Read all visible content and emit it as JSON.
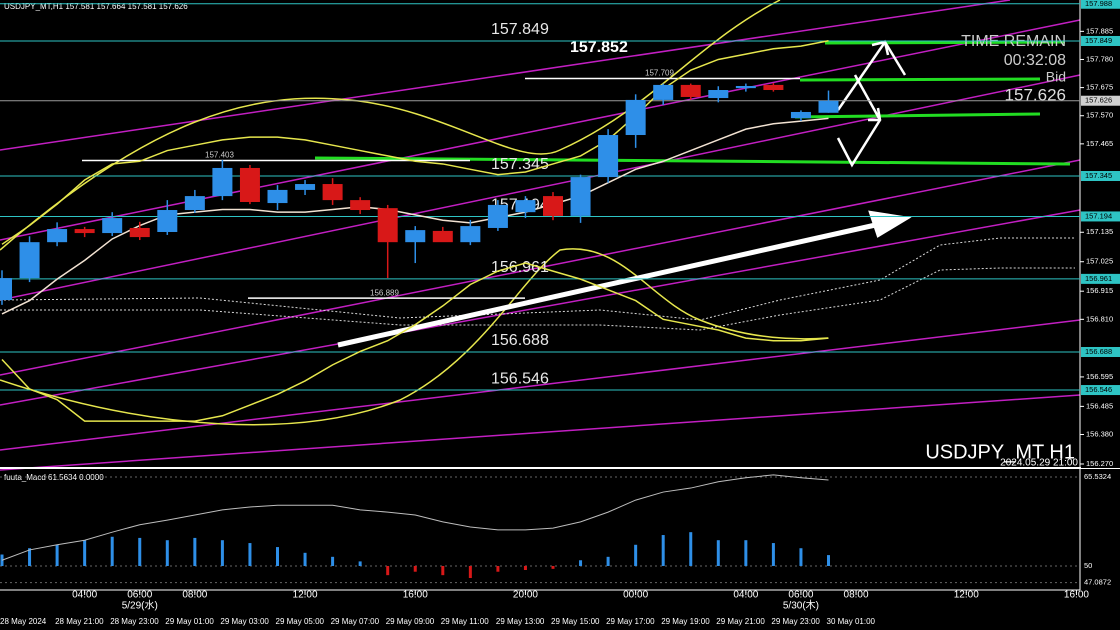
{
  "header": "USDJPY_MT,H1  157.581 157.664 157.581 157.626",
  "chart_data": [
    {
      "type": "candlestick",
      "title": "USDJPY_MT H1",
      "subtitle": "2024.05.29 21:00",
      "categories": [
        null,
        null,
        null,
        "04:00",
        null,
        "06:00",
        null,
        "08:00",
        null,
        null,
        null,
        "12:00",
        null,
        null,
        null,
        "16:00",
        null,
        null,
        null,
        "20:00",
        null,
        null,
        null,
        "00:00",
        null,
        null,
        null,
        "04:00",
        null,
        "06:00",
        null,
        "08:00",
        null,
        null,
        null,
        "12:00",
        null,
        null,
        null,
        "16:00"
      ],
      "category_dates": [
        null,
        null,
        null,
        null,
        null,
        "5/29(水)",
        null,
        null,
        null,
        null,
        null,
        null,
        null,
        null,
        null,
        null,
        null,
        null,
        null,
        null,
        null,
        null,
        null,
        null,
        null,
        null,
        null,
        null,
        null,
        "5/30(木)",
        null,
        null,
        null,
        null,
        null,
        null,
        null,
        null,
        null,
        null
      ],
      "bottom_labels": [
        "28 May 2024",
        null,
        "28 May 21:00",
        null,
        "28 May 23:00",
        null,
        "29 May 01:00",
        null,
        "29 May 03:00",
        null,
        "29 May 05:00",
        null,
        "29 May 07:00",
        null,
        "29 May 09:00",
        null,
        "29 May 11:00",
        null,
        "29 May 13:00",
        null,
        "29 May 15:00",
        null,
        "29 May 17:00",
        null,
        "29 May 19:00",
        null,
        "29 May 21:00",
        null,
        "29 May 23:00",
        null,
        "30 May 01:00",
        null,
        null,
        null,
        null,
        null,
        null,
        null,
        null,
        null
      ],
      "open": [
        156.882,
        156.964,
        157.098,
        157.147,
        157.132,
        157.151,
        157.136,
        157.218,
        157.27,
        157.375,
        157.244,
        157.293,
        157.315,
        157.255,
        157.225,
        157.098,
        157.14,
        157.098,
        157.151,
        157.21,
        157.27,
        157.196,
        157.341,
        157.498,
        157.629,
        157.685,
        157.636,
        157.673,
        157.685,
        157.561,
        157.581,
        null,
        null,
        null,
        null,
        null,
        null,
        null,
        null,
        null
      ],
      "high": [
        156.993,
        157.12,
        157.172,
        157.155,
        157.21,
        157.174,
        157.255,
        157.293,
        157.405,
        157.386,
        157.311,
        157.33,
        157.337,
        157.266,
        157.237,
        157.158,
        157.155,
        157.181,
        157.255,
        157.27,
        157.285,
        157.35,
        157.52,
        157.65,
        157.69,
        157.69,
        157.68,
        157.69,
        157.692,
        157.59,
        157.664,
        null,
        null,
        null,
        null,
        null,
        null,
        null,
        null,
        null
      ],
      "low": [
        156.864,
        156.949,
        157.083,
        157.117,
        157.121,
        157.106,
        157.125,
        157.207,
        157.255,
        157.24,
        157.218,
        157.274,
        157.237,
        157.203,
        156.964,
        157.02,
        157.106,
        157.087,
        157.14,
        157.188,
        157.18,
        157.17,
        157.32,
        157.45,
        157.61,
        157.63,
        157.62,
        157.66,
        157.66,
        157.55,
        157.581,
        null,
        null,
        null,
        null,
        null,
        null,
        null,
        null,
        null
      ],
      "close": [
        156.964,
        157.098,
        157.147,
        157.132,
        157.188,
        157.117,
        157.218,
        157.27,
        157.375,
        157.248,
        157.293,
        157.315,
        157.255,
        157.218,
        157.098,
        157.143,
        157.098,
        157.158,
        157.237,
        157.255,
        157.196,
        157.341,
        157.498,
        157.629,
        157.685,
        157.64,
        157.666,
        157.681,
        157.666,
        157.584,
        157.626,
        null,
        null,
        null,
        null,
        null,
        null,
        null,
        null,
        null
      ],
      "up_color": "#2e8fe8",
      "down_color": "#d81818",
      "overlays": [
        {
          "color": "#e6e64d",
          "values": [
            157.09,
            157.16,
            157.24,
            157.33,
            157.39,
            157.4,
            157.44,
            157.46,
            157.48,
            157.49,
            157.49,
            157.48,
            157.46,
            157.44,
            157.42,
            157.4,
            157.39,
            157.37,
            157.35,
            157.36,
            157.39,
            157.42,
            157.48,
            157.57,
            157.67,
            157.74,
            157.78,
            157.8,
            157.82,
            157.83,
            157.85,
            null,
            null,
            null,
            null,
            null,
            null,
            null,
            null,
            null
          ]
        },
        {
          "color": "#e6e64d",
          "values": [
            156.66,
            156.55,
            156.51,
            156.43,
            156.43,
            156.43,
            156.43,
            156.43,
            156.45,
            156.49,
            156.53,
            156.58,
            156.64,
            156.69,
            156.73,
            156.79,
            156.86,
            156.94,
            156.99,
            157.02,
            156.99,
            156.96,
            156.92,
            156.88,
            156.81,
            156.79,
            156.77,
            156.74,
            156.73,
            156.73,
            156.74,
            null,
            null,
            null,
            null,
            null,
            null,
            null,
            null,
            null
          ]
        },
        {
          "color": "#f2e2d2",
          "values": [
            156.83,
            156.88,
            156.96,
            157.03,
            157.11,
            157.16,
            157.2,
            157.21,
            157.22,
            157.22,
            157.21,
            157.21,
            157.22,
            157.23,
            157.22,
            157.2,
            157.18,
            157.17,
            157.19,
            157.21,
            157.24,
            157.27,
            157.32,
            157.37,
            157.4,
            157.44,
            157.48,
            157.52,
            157.54,
            157.55,
            157.56,
            null,
            null,
            null,
            null,
            null,
            null,
            null,
            null,
            null
          ]
        }
      ],
      "ylim": [
        156.255,
        158.002
      ],
      "yticks": [
        157.885,
        {
          "value": 157.78,
          "label": "157.780"
        },
        157.675,
        {
          "value": 157.57,
          "label": "157.570"
        },
        157.465,
        157.135,
        157.025,
        156.915,
        {
          "value": 156.81,
          "label": "156.810"
        },
        156.595,
        156.485,
        {
          "value": 156.38,
          "label": "156.380"
        },
        {
          "value": 156.27,
          "label": "156.270"
        }
      ],
      "levels": [
        {
          "value": 157.988,
          "color": "#2ec4c4"
        },
        {
          "value": 157.849,
          "color": "#2ec4c4"
        },
        {
          "value": 157.626,
          "color": "#9a9a9a"
        },
        {
          "value": 157.345,
          "color": "#2ec4c4"
        },
        {
          "value": 157.194,
          "color": "#2ec4c4"
        },
        {
          "value": 156.961,
          "color": "#2ec4c4"
        },
        {
          "value": 156.688,
          "color": "#2ec4c4"
        },
        {
          "value": 156.546,
          "color": "#2ec4c4"
        }
      ],
      "segments": [
        157.709,
        157.403,
        156.889
      ],
      "high_label": 157.852,
      "info": {
        "time_remain_label": "TIME REMAIN",
        "time_remain": "00:32:08",
        "bid_label": "Bid",
        "bid": 157.626
      }
    },
    {
      "type": "macd",
      "title": "fuuta_Macd 61.5634  0.0000",
      "histogram": [
        52.0,
        53.1,
        53.7,
        54.5,
        55.1,
        54.9,
        54.5,
        54.9,
        54.5,
        54.0,
        53.3,
        52.3,
        51.6,
        50.8,
        48.4,
        49.0,
        48.4,
        47.9,
        49.0,
        49.3,
        49.5,
        51.0,
        51.6,
        53.7,
        55.4,
        55.9,
        54.5,
        54.5,
        54.0,
        53.1,
        51.9,
        null,
        null,
        null,
        null,
        null,
        null,
        null,
        null,
        null
      ],
      "signal": [
        51.0,
        52.8,
        53.7,
        54.5,
        55.9,
        57.2,
        58.0,
        58.9,
        59.8,
        60.3,
        60.6,
        60.6,
        60.6,
        59.8,
        59.4,
        58.9,
        57.7,
        56.8,
        56.3,
        56.3,
        56.6,
        57.7,
        59.4,
        61.5,
        62.9,
        63.6,
        64.7,
        65.4,
        65.9,
        65.4,
        65.0,
        null,
        null,
        null,
        null,
        null,
        null,
        null,
        null,
        null
      ],
      "up_color": "#2e8fe8",
      "down_color": "#d81818",
      "signal_color": "#bdbdbd",
      "ylim": [
        45.81,
        66.75
      ],
      "yticks": [
        65.5324,
        50,
        47.0872
      ]
    }
  ]
}
